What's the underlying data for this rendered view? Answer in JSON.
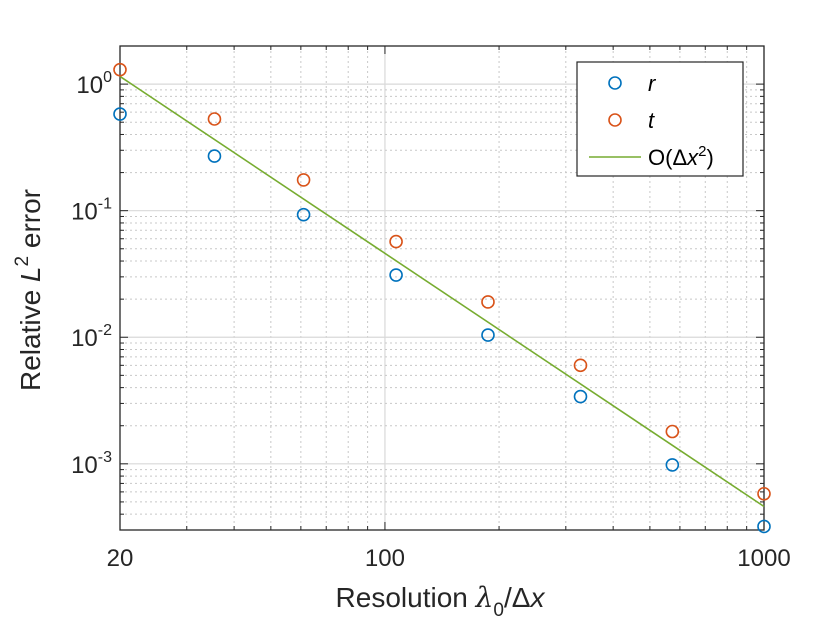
{
  "chart_data": {
    "type": "scatter",
    "xscale": "log",
    "yscale": "log",
    "xlim": [
      20,
      1000
    ],
    "ylim": [
      0.0003,
      2.0
    ],
    "xticks": [
      {
        "value": 20,
        "label": "20"
      },
      {
        "value": 100,
        "label": "100"
      },
      {
        "value": 1000,
        "label": "1000"
      }
    ],
    "yticks": [
      {
        "value": 0.001,
        "base": "10",
        "exp": "-3"
      },
      {
        "value": 0.01,
        "base": "10",
        "exp": "-2"
      },
      {
        "value": 0.1,
        "base": "10",
        "exp": "-1"
      },
      {
        "value": 1,
        "base": "10",
        "exp": "0"
      }
    ],
    "grid": "on (major and minor)",
    "legend_position": "top-right",
    "xlabel": {
      "text": "Resolution ",
      "symbol": "λ",
      "sub": "0",
      "rest": "/Δ",
      "var": "x"
    },
    "ylabel": {
      "prefix": "Relative ",
      "var": "L",
      "sup": "2",
      "suffix": " error"
    },
    "colors": {
      "r": "#0072BD",
      "t": "#D95319",
      "fit": "#77AC30"
    },
    "series": [
      {
        "name": "r",
        "marker": "circle",
        "x": [
          20,
          35.5,
          61,
          107,
          187,
          328,
          573,
          1000
        ],
        "y": [
          0.58,
          0.27,
          0.093,
          0.031,
          0.0104,
          0.0034,
          0.00098,
          0.00032
        ]
      },
      {
        "name": "t",
        "marker": "circle",
        "x": [
          20,
          35.5,
          61,
          107,
          187,
          328,
          573,
          1000
        ],
        "y": [
          1.3,
          0.53,
          0.175,
          0.057,
          0.019,
          0.006,
          0.0018,
          0.00058
        ]
      },
      {
        "name": "O(Δx²)",
        "label_parts": {
          "pre": "O(Δ",
          "var": "x",
          "sup": "2",
          "post": ")"
        },
        "line": true,
        "x": [
          20,
          1000
        ],
        "y": [
          1.15,
          0.00046
        ]
      }
    ]
  }
}
